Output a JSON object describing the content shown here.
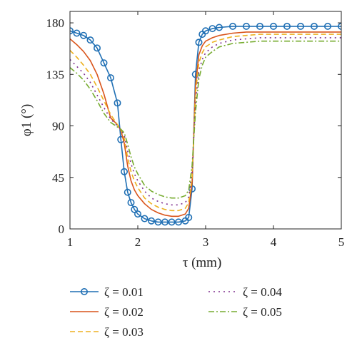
{
  "chart_data": {
    "type": "line",
    "xlabel": "τ (mm)",
    "ylabel": "φ1 (°)",
    "xlim": [
      1,
      5
    ],
    "ylim": [
      0,
      190
    ],
    "xticks": [
      1,
      2,
      3,
      4,
      5
    ],
    "yticks": [
      0,
      45,
      90,
      135,
      180
    ],
    "grid": false,
    "legend_position": "bottom",
    "x": [
      1.0,
      1.1,
      1.2,
      1.3,
      1.4,
      1.5,
      1.6,
      1.7,
      1.75,
      1.8,
      1.85,
      1.9,
      1.95,
      2.0,
      2.1,
      2.2,
      2.3,
      2.4,
      2.5,
      2.6,
      2.7,
      2.75,
      2.8,
      2.85,
      2.9,
      2.95,
      3.0,
      3.1,
      3.2,
      3.4,
      3.6,
      3.8,
      4.0,
      4.2,
      4.4,
      4.6,
      4.8,
      5.0
    ],
    "series": [
      {
        "name": "ζ = 0.01",
        "color": "#1f6fb4",
        "dash": "",
        "marker": "circle",
        "values": [
          173,
          171,
          169,
          165,
          158,
          145,
          132,
          110,
          78,
          50,
          32,
          23,
          17,
          13,
          9,
          7,
          6,
          6,
          6,
          6,
          7,
          10,
          35,
          135,
          163,
          170,
          173,
          175,
          176,
          177,
          177,
          177,
          177,
          177,
          177,
          177,
          177,
          177
        ]
      },
      {
        "name": "ζ = 0.02",
        "color": "#d9541a",
        "dash": "",
        "values": [
          166,
          161,
          155,
          147,
          135,
          118,
          97,
          91,
          86,
          75,
          55,
          42,
          34,
          29,
          22,
          17,
          14,
          12,
          11,
          11,
          13,
          18,
          40,
          125,
          152,
          160,
          164,
          167,
          169,
          171,
          172,
          172,
          172,
          172,
          172,
          172,
          172,
          172
        ]
      },
      {
        "name": "ζ = 0.03",
        "color": "#edb120",
        "dash": "7,4",
        "values": [
          156,
          150,
          143,
          135,
          124,
          112,
          100,
          91,
          87,
          79,
          62,
          50,
          42,
          36,
          27,
          22,
          19,
          17,
          16,
          16,
          18,
          23,
          45,
          118,
          145,
          154,
          159,
          163,
          165,
          168,
          169,
          170,
          170,
          170,
          170,
          170,
          170,
          170
        ]
      },
      {
        "name": "ζ = 0.04",
        "color": "#7e2f8e",
        "dash": "2,5",
        "values": [
          148,
          142,
          136,
          128,
          117,
          106,
          96,
          90,
          87,
          82,
          68,
          57,
          48,
          42,
          33,
          27,
          24,
          22,
          21,
          21,
          23,
          28,
          50,
          110,
          138,
          148,
          154,
          159,
          162,
          165,
          166,
          167,
          167,
          167,
          167,
          167,
          167,
          167
        ]
      },
      {
        "name": "ζ = 0.05",
        "color": "#77ac30",
        "dash": "8,3,2,3",
        "values": [
          141,
          136,
          130,
          122,
          112,
          101,
          93,
          89,
          87,
          84,
          74,
          63,
          54,
          48,
          38,
          33,
          30,
          28,
          27,
          27,
          29,
          34,
          55,
          102,
          131,
          143,
          150,
          155,
          159,
          162,
          163,
          164,
          164,
          164,
          164,
          164,
          164,
          164
        ]
      }
    ]
  }
}
